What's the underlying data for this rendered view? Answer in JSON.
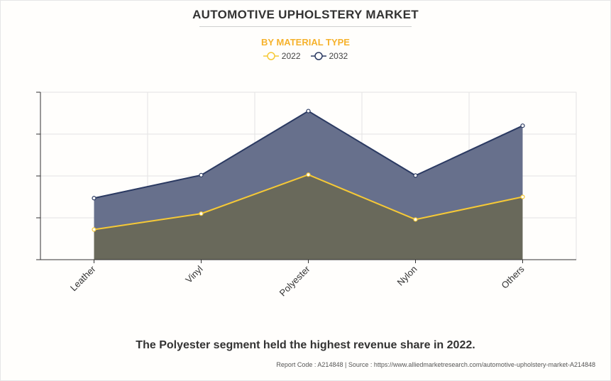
{
  "title": "AUTOMOTIVE UPHOLSTERY MARKET",
  "subtitle": "BY MATERIAL TYPE",
  "caption": "The Polyester segment held the highest revenue share in 2022.",
  "footer": {
    "report_code": "Report Code : A214848",
    "separator": "|",
    "source": "Source : https://www.alliedmarketresearch.com/automotive-upholstery-market-A214848"
  },
  "colors": {
    "series_2022": "#f6c936",
    "series_2032": "#2b3a62",
    "fill_2032": "#67708c",
    "fill_2022": "#69695b"
  },
  "chart_data": {
    "type": "area",
    "categories": [
      "Leather",
      "Vinyl",
      "Polyester",
      "Nylon",
      "Others"
    ],
    "series": [
      {
        "name": "2022",
        "values": [
          0.72,
          1.1,
          2.03,
          0.96,
          1.5
        ]
      },
      {
        "name": "2032",
        "values": [
          1.47,
          2.02,
          3.55,
          2.01,
          3.2
        ]
      }
    ],
    "ylim": [
      0,
      4
    ],
    "grid": true,
    "legend": "top-center",
    "y_tick_labels_shown": false
  }
}
